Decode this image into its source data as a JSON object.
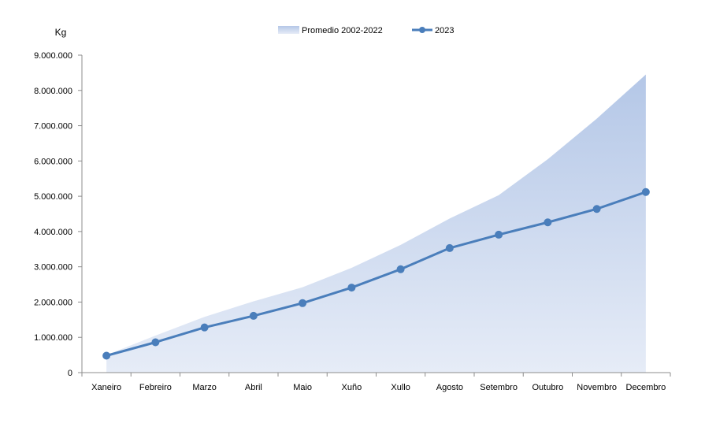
{
  "chart_data": {
    "type": "line",
    "ylabel": "Kg",
    "ylim": [
      0,
      9000000
    ],
    "yticks": [
      0,
      1000000,
      2000000,
      3000000,
      4000000,
      5000000,
      6000000,
      7000000,
      8000000,
      9000000
    ],
    "ytick_labels": [
      "0",
      "1.000.000",
      "2.000.000",
      "3.000.000",
      "4.000.000",
      "5.000.000",
      "6.000.000",
      "7.000.000",
      "8.000.000",
      "9.000.000"
    ],
    "categories": [
      "Xaneiro",
      "Febreiro",
      "Marzo",
      "Abril",
      "Maio",
      "Xuño",
      "Xullo",
      "Agosto",
      "Setembro",
      "Outubro",
      "Novembro",
      "Decembro"
    ],
    "legend_position": "top",
    "grid": false,
    "series": [
      {
        "name": "Promedio 2002-2022",
        "type": "area",
        "color": "#b4c7e7",
        "values": [
          500000,
          1050000,
          1580000,
          2020000,
          2420000,
          2970000,
          3620000,
          4370000,
          5030000,
          6050000,
          7200000,
          8450000
        ]
      },
      {
        "name": "2023",
        "type": "line",
        "color": "#4a7ebb",
        "values": [
          480000,
          860000,
          1280000,
          1610000,
          1970000,
          2410000,
          2930000,
          3530000,
          3910000,
          4260000,
          4640000,
          5120000
        ]
      }
    ]
  }
}
